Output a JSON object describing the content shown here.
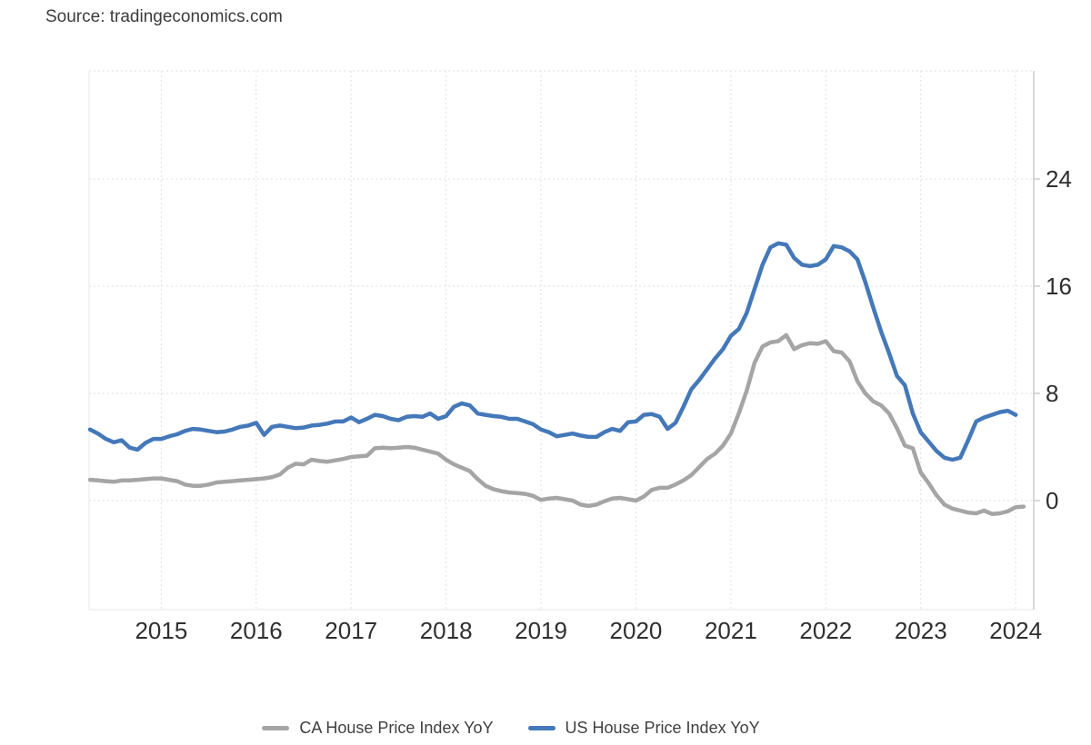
{
  "source_label": "Source: tradingeconomics.com",
  "legend": [
    {
      "label": "CA House Price Index YoY",
      "color": "#a5a5a5"
    },
    {
      "label": "US House Price Index YoY",
      "color": "#4478b9"
    }
  ],
  "chart_data": {
    "type": "line",
    "title": "",
    "xlabel": "",
    "ylabel": "",
    "grid": "dotted",
    "legend_position": "bottom",
    "xlim": [
      2014.24,
      2024.19
    ],
    "ylim": [
      -8.14,
      32.07
    ],
    "x_axis": {
      "ticks": [
        2015,
        2016,
        2017,
        2018,
        2019,
        2020,
        2021,
        2022,
        2023,
        2024
      ]
    },
    "y_axis": {
      "ticks": [
        0,
        8,
        16,
        24
      ],
      "side": "right"
    },
    "series": [
      {
        "name": "CA House Price Index YoY",
        "color": "#a5a5a5",
        "x_start": 2014.25,
        "x_step": 0.0833333,
        "start_label": "2014-04",
        "values": [
          1.55,
          1.5,
          1.45,
          1.4,
          1.5,
          1.5,
          1.55,
          1.6,
          1.65,
          1.65,
          1.55,
          1.45,
          1.2,
          1.1,
          1.1,
          1.2,
          1.35,
          1.4,
          1.45,
          1.5,
          1.55,
          1.6,
          1.65,
          1.75,
          1.95,
          2.45,
          2.75,
          2.7,
          3.05,
          2.95,
          2.9,
          3.0,
          3.1,
          3.25,
          3.3,
          3.35,
          3.9,
          3.95,
          3.9,
          3.95,
          4.0,
          3.95,
          3.8,
          3.65,
          3.5,
          3.05,
          2.7,
          2.45,
          2.2,
          1.6,
          1.1,
          0.85,
          0.7,
          0.6,
          0.55,
          0.5,
          0.35,
          0.05,
          0.15,
          0.2,
          0.1,
          0.0,
          -0.3,
          -0.4,
          -0.3,
          -0.05,
          0.15,
          0.2,
          0.1,
          0.0,
          0.3,
          0.8,
          0.95,
          0.95,
          1.2,
          1.5,
          1.9,
          2.5,
          3.1,
          3.5,
          4.1,
          5.0,
          6.5,
          8.2,
          10.3,
          11.5,
          11.8,
          11.9,
          12.35,
          11.3,
          11.6,
          11.75,
          11.7,
          11.9,
          11.15,
          11.05,
          10.4,
          8.9,
          8.0,
          7.4,
          7.1,
          6.5,
          5.4,
          4.1,
          3.9,
          2.1,
          1.3,
          0.4,
          -0.3,
          -0.6,
          -0.75,
          -0.9,
          -0.95,
          -0.75,
          -1.0,
          -0.95,
          -0.8,
          -0.5,
          -0.45
        ]
      },
      {
        "name": "US House Price Index YoY",
        "color": "#4478b9",
        "x_start": 2014.25,
        "x_step": 0.0833333,
        "start_label": "2014-04",
        "values": [
          5.3,
          5.0,
          4.6,
          4.35,
          4.5,
          3.95,
          3.8,
          4.3,
          4.6,
          4.6,
          4.8,
          4.95,
          5.2,
          5.35,
          5.3,
          5.2,
          5.1,
          5.15,
          5.3,
          5.5,
          5.6,
          5.8,
          4.9,
          5.5,
          5.6,
          5.5,
          5.4,
          5.45,
          5.6,
          5.65,
          5.75,
          5.9,
          5.9,
          6.2,
          5.85,
          6.1,
          6.4,
          6.3,
          6.1,
          6.0,
          6.25,
          6.3,
          6.25,
          6.5,
          6.1,
          6.3,
          7.0,
          7.25,
          7.1,
          6.5,
          6.4,
          6.3,
          6.25,
          6.1,
          6.1,
          5.9,
          5.7,
          5.3,
          5.1,
          4.8,
          4.9,
          5.0,
          4.85,
          4.75,
          4.75,
          5.1,
          5.35,
          5.2,
          5.85,
          5.9,
          6.4,
          6.45,
          6.25,
          5.35,
          5.8,
          7.0,
          8.3,
          9.0,
          9.8,
          10.6,
          11.3,
          12.3,
          12.8,
          14.0,
          15.8,
          17.6,
          18.9,
          19.2,
          19.1,
          18.1,
          17.6,
          17.5,
          17.6,
          18.0,
          19.0,
          18.9,
          18.6,
          18.0,
          16.3,
          14.4,
          12.6,
          11.0,
          9.3,
          8.6,
          6.5,
          5.1,
          4.4,
          3.7,
          3.2,
          3.05,
          3.2,
          4.5,
          5.9,
          6.2,
          6.4,
          6.6,
          6.7,
          6.4
        ]
      }
    ]
  }
}
